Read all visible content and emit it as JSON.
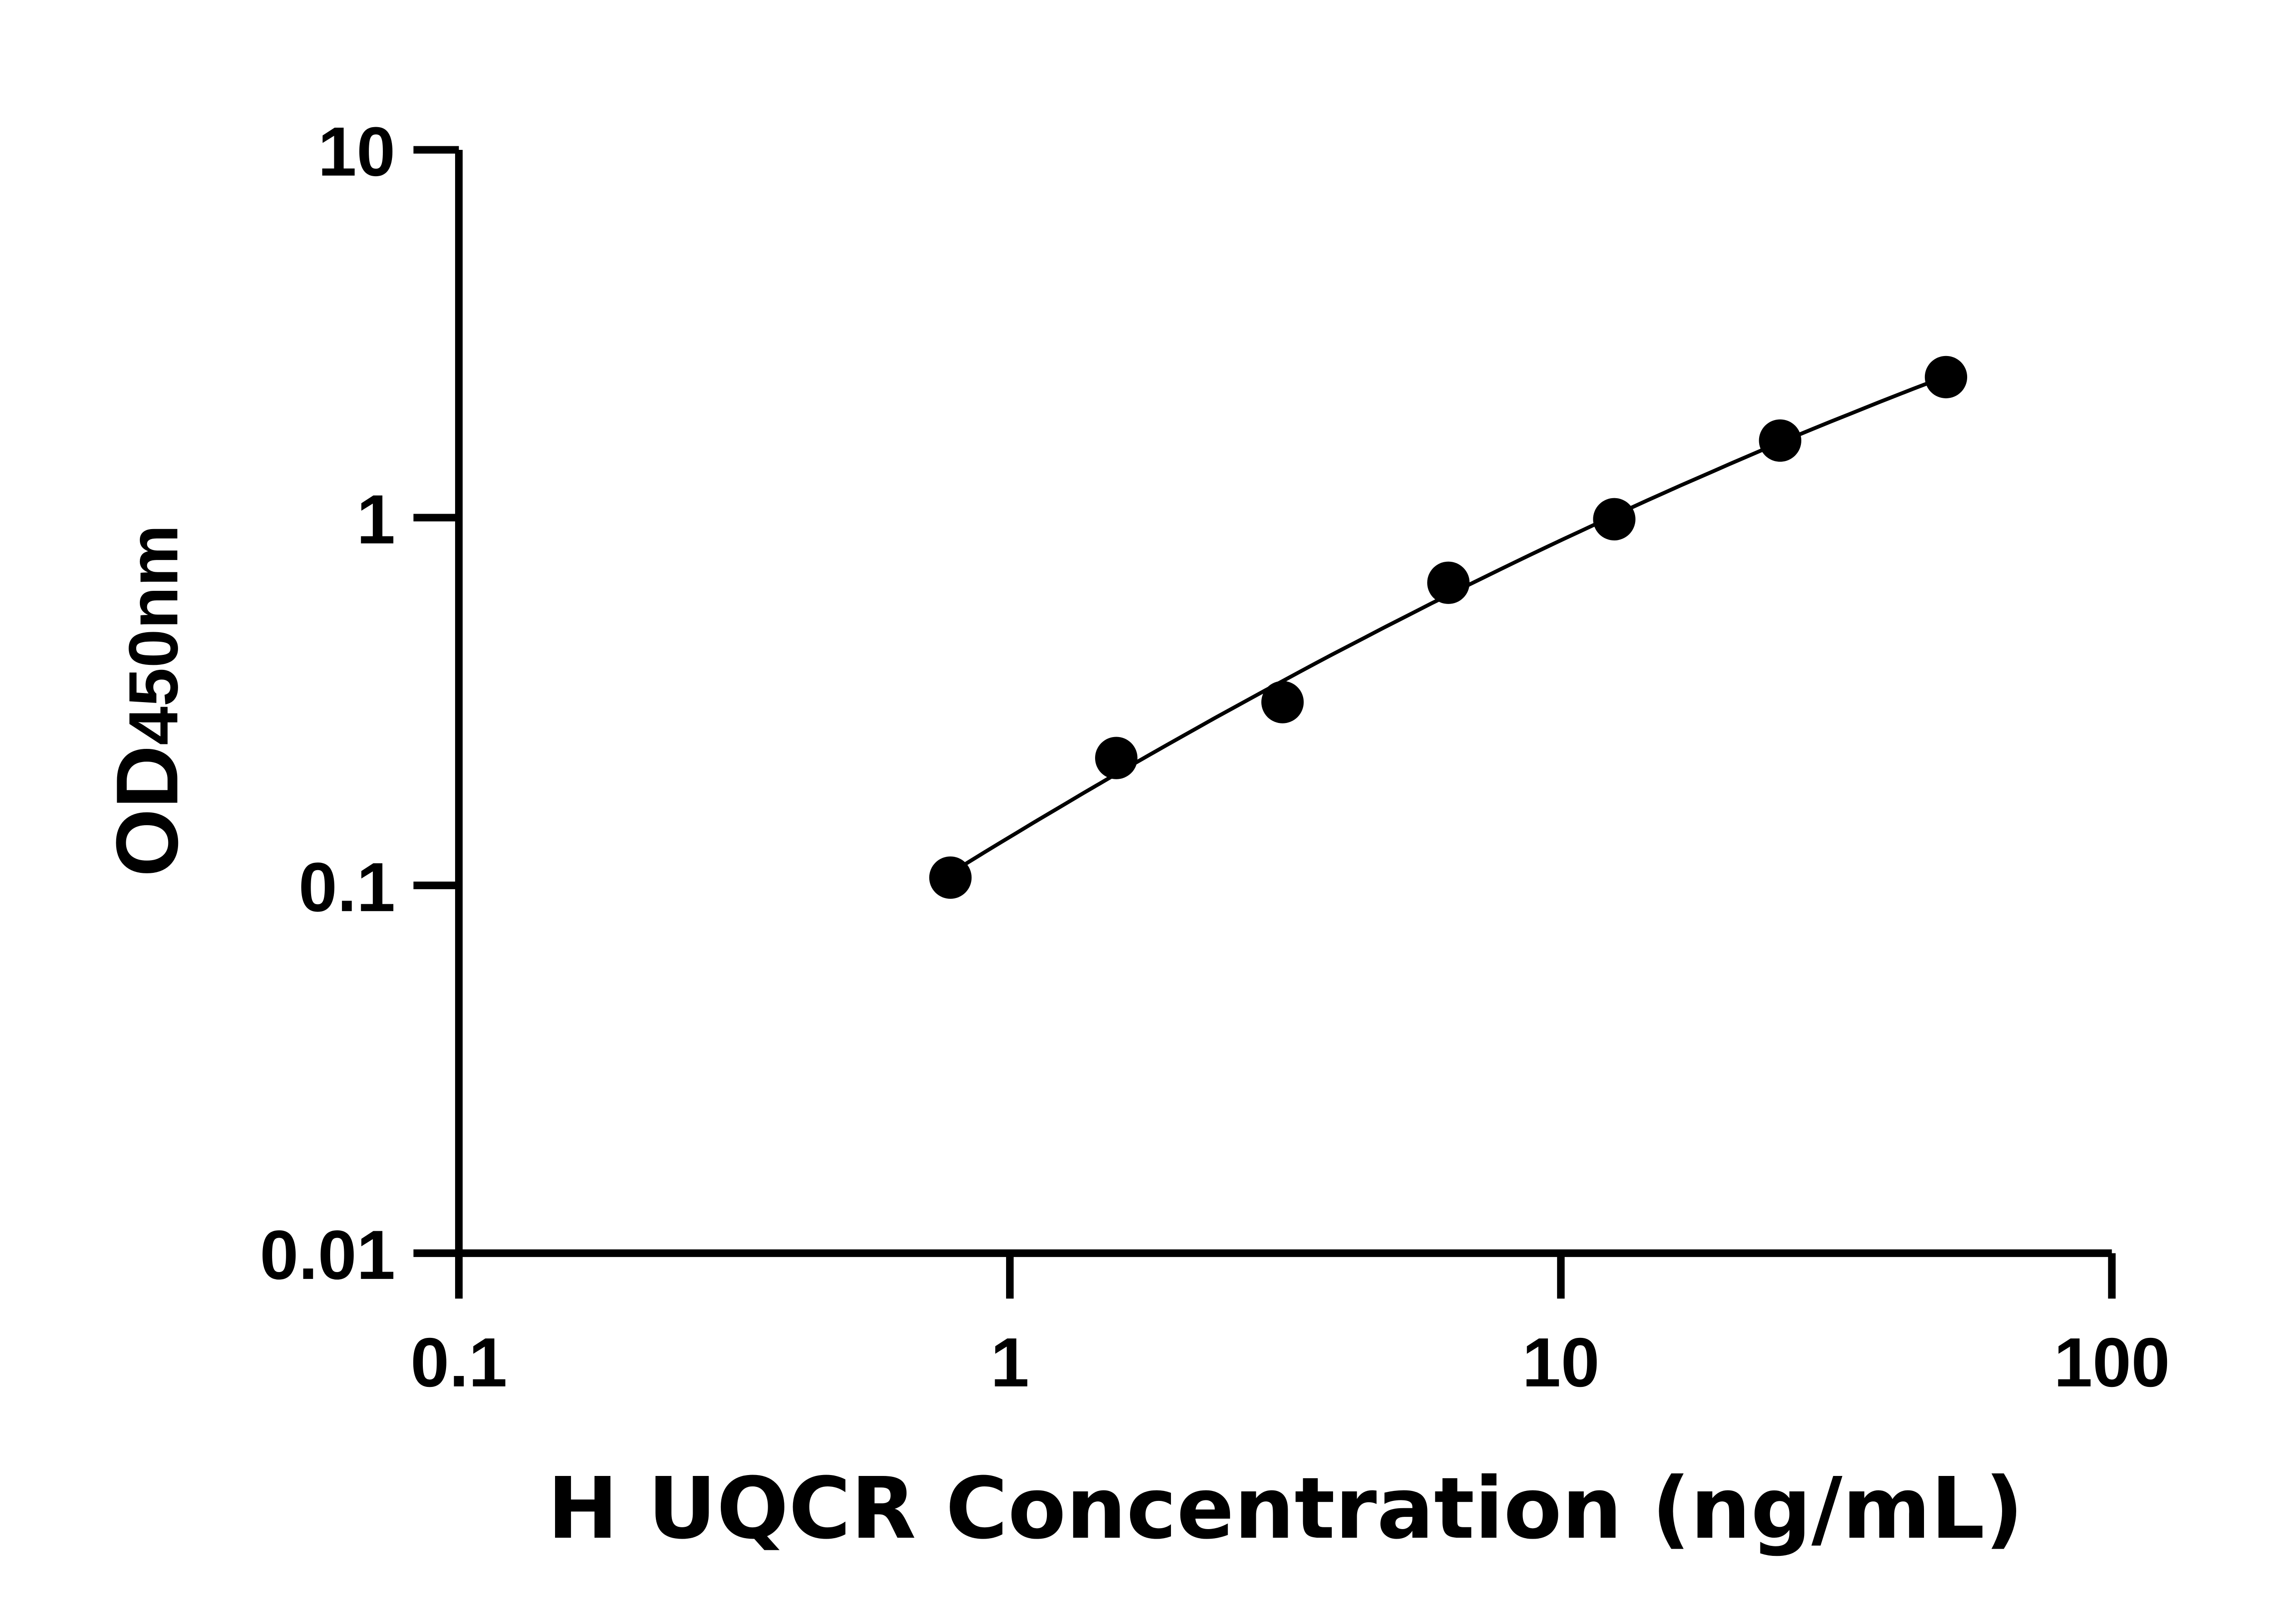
{
  "chart_data": {
    "type": "scatter",
    "xlabel": "H UQCR Concentration (ng/mL)",
    "ylabel": "OD450nm",
    "ylabel_main": "OD",
    "ylabel_sub": "450nm",
    "x_scale": "log",
    "y_scale": "log",
    "xlim": [
      0.1,
      100
    ],
    "ylim": [
      0.01,
      10
    ],
    "x_ticks": [
      "0.1",
      "1",
      "10",
      "100"
    ],
    "y_ticks": [
      "0.01",
      "0.1",
      "1",
      "10"
    ],
    "grid": false,
    "fit_line": true,
    "marker_color": "#000000",
    "x": [
      0.78,
      1.56,
      3.125,
      6.25,
      12.5,
      25,
      50
    ],
    "y": [
      0.105,
      0.222,
      0.315,
      0.665,
      0.99,
      1.62,
      2.41
    ]
  }
}
